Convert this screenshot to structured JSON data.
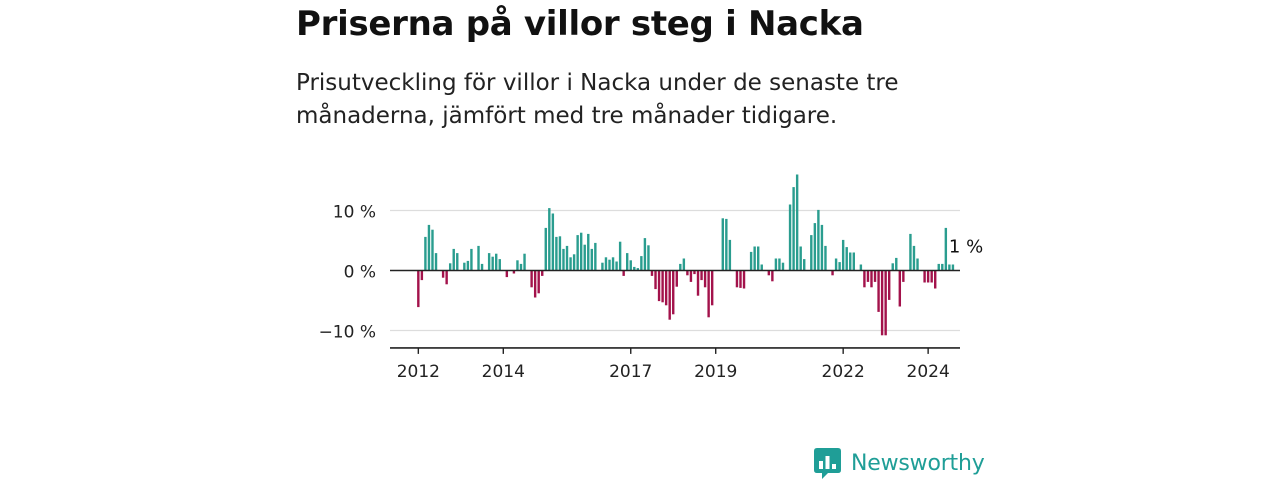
{
  "title": "Priserna på villor steg i Nacka",
  "subtitle": "Prisutveckling för villor i Nacka under de senaste tre månaderna, jämfört med tre månader tidigare.",
  "brand": {
    "name": "Newsworthy"
  },
  "colors": {
    "positive": "#2a9d8f",
    "negative": "#a3124b",
    "grid": "#dddddd",
    "axis": "#222222",
    "brand": "#1f9e97"
  },
  "chart_data": {
    "type": "bar",
    "x_ticks": [
      "2012",
      "2014",
      "2017",
      "2019",
      "2022",
      "2024"
    ],
    "y_ticks": [
      "10 %",
      "0 %",
      "−10 %"
    ],
    "y_tick_values": [
      10,
      0,
      -10
    ],
    "ylim": [
      -13,
      17
    ],
    "xlim": [
      "2011-05",
      "2024-10"
    ],
    "annotation": "1 %",
    "series": [
      {
        "values": [
          -6.1,
          -1.6,
          5.6,
          7.6,
          6.8,
          2.9,
          0,
          -1.2,
          -2.3,
          1.2,
          3.6,
          2.9,
          0,
          1.3,
          1.6,
          3.6,
          0,
          4.1,
          1.1,
          0,
          2.9,
          2.3,
          2.8,
          1.9,
          0,
          -1.1,
          0,
          -0.5,
          1.7,
          1.1,
          2.8,
          0,
          -2.8,
          -4.5,
          -3.8,
          -0.9,
          7.1,
          10.4,
          9.5,
          5.6,
          5.7,
          3.6,
          4.1,
          2.2,
          2.7,
          5.9,
          6.3,
          4.3,
          6.1,
          3.6,
          4.6,
          0,
          1.3,
          2.2,
          1.8,
          2.2,
          1.5,
          4.8,
          -0.9,
          2.9,
          1.7,
          0.6,
          0.4,
          2.4,
          5.4,
          4.2,
          -0.9,
          -3.1,
          -5.1,
          -5.3,
          -5.8,
          -8.2,
          -7.3,
          -2.7,
          1.1,
          2.0,
          -0.8,
          -1.9,
          -0.6,
          -4.2,
          -1.6,
          -2.8,
          -7.8,
          -5.8,
          0,
          0,
          8.7,
          8.6,
          5.1,
          0,
          -2.8,
          -2.9,
          -3.0,
          0,
          3.1,
          4.0,
          4.0,
          1.0,
          0,
          -0.8,
          -1.8,
          2.0,
          2.0,
          1.3,
          0,
          11.0,
          13.9,
          16.0,
          4.0,
          1.9,
          0,
          5.9,
          7.9,
          10.1,
          7.6,
          4.1,
          0,
          -0.8,
          2.0,
          1.4,
          5.1,
          3.9,
          3.0,
          3.0,
          0,
          1.0,
          -2.8,
          -1.9,
          -2.8,
          -1.9,
          -6.9,
          -10.8,
          -10.8,
          -4.9,
          1.2,
          2.1,
          -6.0,
          -1.9,
          0,
          6.1,
          4.1,
          2.0,
          0,
          -2.0,
          -2.0,
          -2.0,
          -3.0,
          1.1,
          1.1,
          7.1,
          1.0,
          1.0
        ]
      }
    ]
  }
}
